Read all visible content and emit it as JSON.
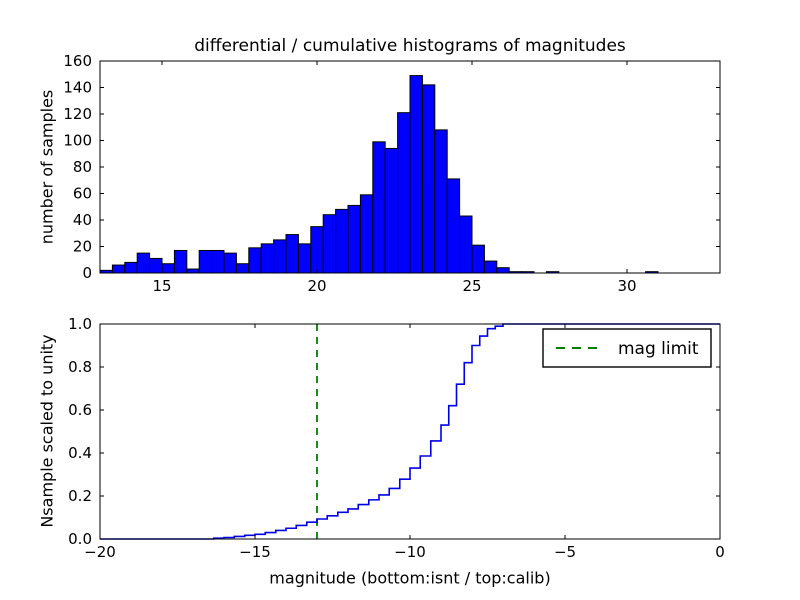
{
  "figure": {
    "title": "differential / cumulative histograms of magnitudes",
    "background": "#ffffff",
    "text_color": "#000000",
    "accent_blue": "#0000ff",
    "accent_green": "#008000"
  },
  "chart_data": [
    {
      "type": "bar",
      "subplot": "top",
      "title": "differential / cumulative histograms of magnitudes",
      "xlabel": "",
      "ylabel": "number of samples",
      "xlim": [
        13,
        33
      ],
      "ylim": [
        0,
        160
      ],
      "xticks": [
        15,
        20,
        25,
        30
      ],
      "yticks": [
        0,
        20,
        40,
        60,
        80,
        100,
        120,
        140,
        160
      ],
      "grid": false,
      "bar_color": "#0000ff",
      "bar_edge_color": "#000000",
      "bin_start": 13.0,
      "bin_width": 0.4,
      "counts": [
        2,
        6,
        8,
        15,
        11,
        7,
        17,
        3,
        17,
        17,
        15,
        7,
        19,
        22,
        25,
        29,
        22,
        35,
        44,
        48,
        51,
        59,
        99,
        94,
        121,
        149,
        142,
        108,
        71,
        43,
        21,
        9,
        4,
        1,
        1,
        0,
        1,
        0,
        0,
        0,
        0,
        0,
        0,
        0,
        1,
        0,
        0,
        0,
        0,
        0
      ]
    },
    {
      "type": "line",
      "subplot": "bottom",
      "style": "step-post",
      "xlabel": "magnitude (bottom:isnt / top:calib)",
      "ylabel": "Nsample scaled to unity",
      "xlim": [
        -20,
        0
      ],
      "ylim": [
        0.0,
        1.0
      ],
      "xticks": [
        -20,
        -15,
        -10,
        -5,
        0
      ],
      "yticks": [
        0.0,
        0.2,
        0.4,
        0.6,
        0.8,
        1.0
      ],
      "grid": false,
      "line_color": "#0000e6",
      "steps": [
        [
          -20.0,
          0.0
        ],
        [
          -16.33,
          0.004
        ],
        [
          -16.0,
          0.007
        ],
        [
          -15.67,
          0.012
        ],
        [
          -15.33,
          0.017
        ],
        [
          -15.0,
          0.022
        ],
        [
          -14.67,
          0.03
        ],
        [
          -14.33,
          0.04
        ],
        [
          -14.0,
          0.05
        ],
        [
          -13.67,
          0.063
        ],
        [
          -13.33,
          0.078
        ],
        [
          -13.0,
          0.093
        ],
        [
          -12.67,
          0.108
        ],
        [
          -12.33,
          0.124
        ],
        [
          -12.0,
          0.14
        ],
        [
          -11.67,
          0.16
        ],
        [
          -11.33,
          0.182
        ],
        [
          -11.0,
          0.205
        ],
        [
          -10.67,
          0.235
        ],
        [
          -10.33,
          0.278
        ],
        [
          -10.0,
          0.33
        ],
        [
          -9.67,
          0.386
        ],
        [
          -9.33,
          0.456
        ],
        [
          -9.0,
          0.53
        ],
        [
          -8.75,
          0.62
        ],
        [
          -8.5,
          0.72
        ],
        [
          -8.25,
          0.82
        ],
        [
          -8.0,
          0.9
        ],
        [
          -7.75,
          0.944
        ],
        [
          -7.5,
          0.978
        ],
        [
          -7.25,
          0.99
        ],
        [
          -7.0,
          1.0
        ],
        [
          0.0,
          1.0
        ]
      ],
      "vline": {
        "x": -13,
        "color": "#008000",
        "style": "dashed",
        "label": "mag limit"
      },
      "legend": {
        "label": "mag limit",
        "position": "upper right",
        "line_color": "#008000",
        "line_style": "dashed"
      }
    }
  ]
}
